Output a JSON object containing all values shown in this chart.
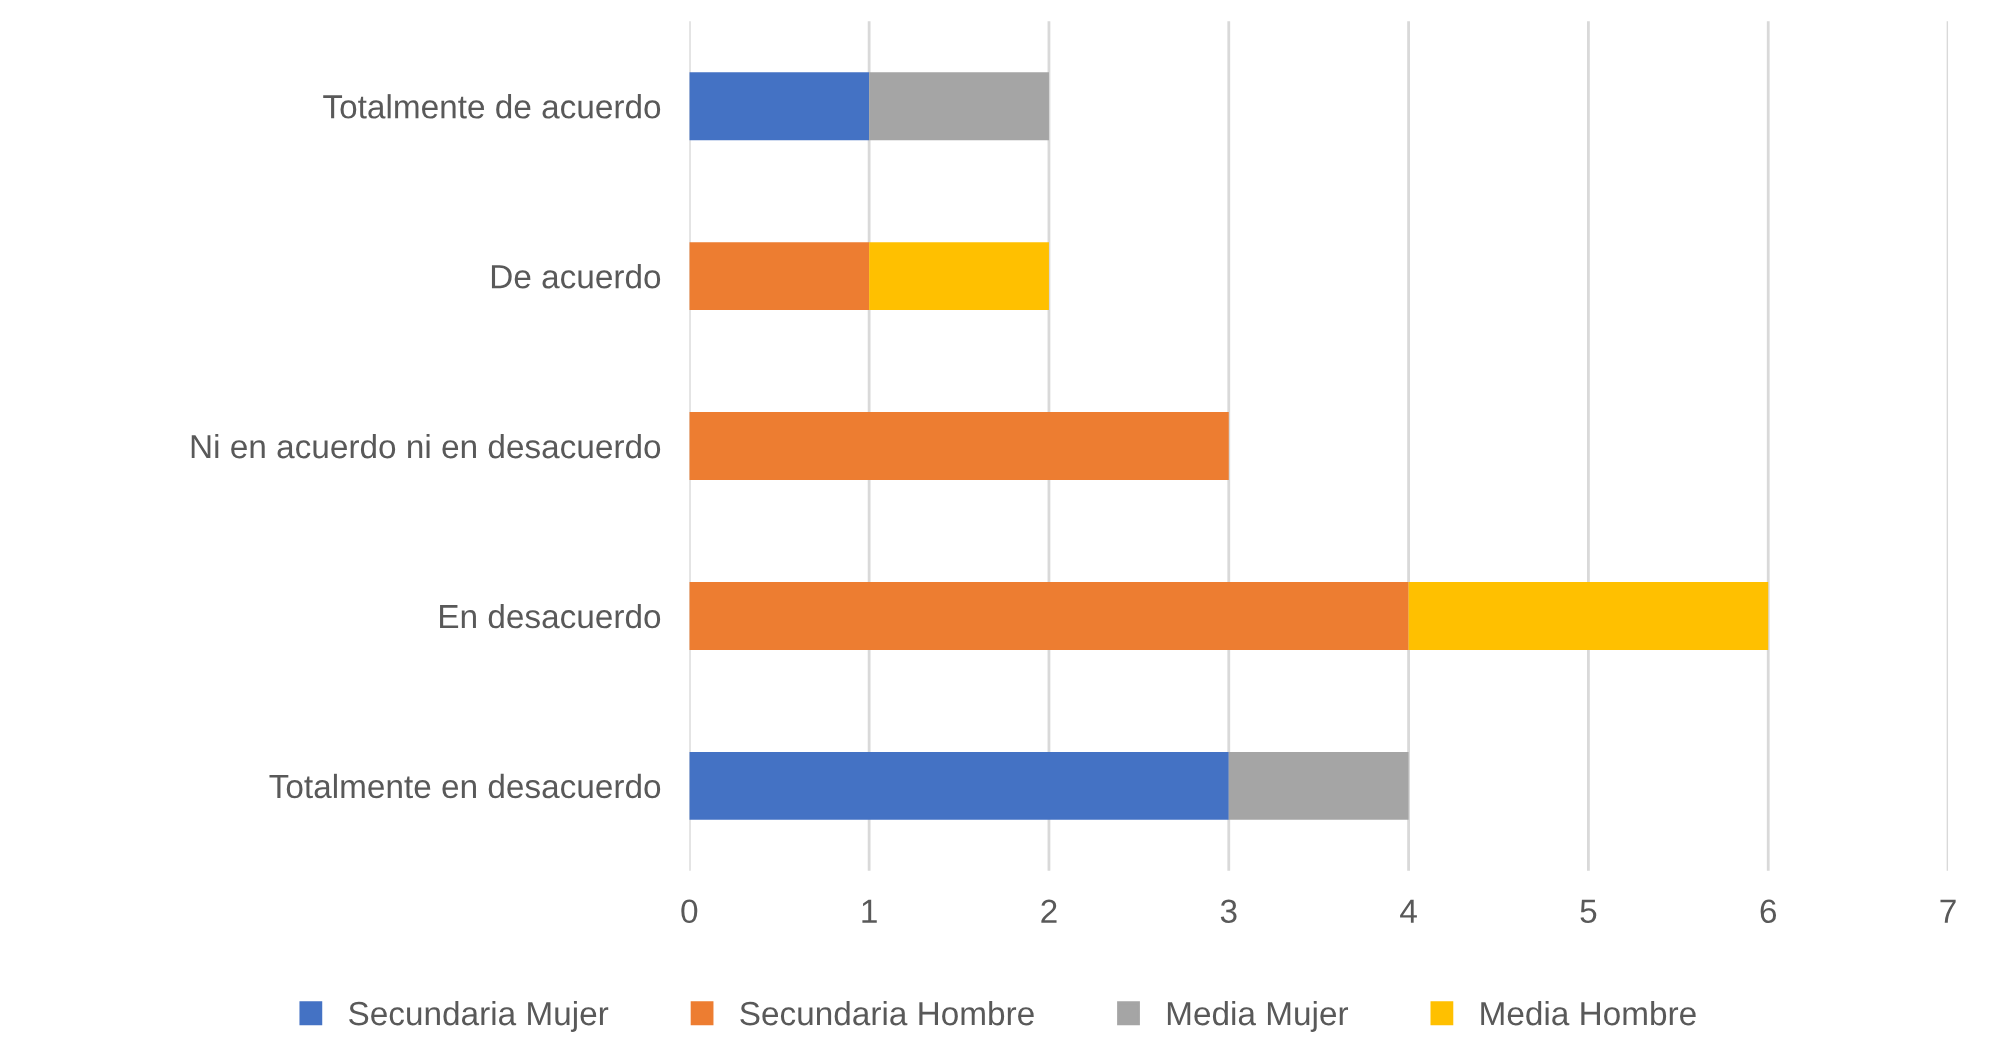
{
  "chart_data": {
    "type": "bar",
    "orientation": "horizontal",
    "stacked": true,
    "categories": [
      "Totalmente de acuerdo",
      "De acuerdo",
      "Ni en acuerdo ni en desacuerdo",
      "En desacuerdo",
      "Totalmente en desacuerdo"
    ],
    "series": [
      {
        "name": "Secundaria Mujer",
        "color": "#4472c4",
        "values": [
          1,
          null,
          null,
          null,
          3
        ]
      },
      {
        "name": "Secundaria Hombre",
        "color": "#ed7d31",
        "values": [
          null,
          1,
          3,
          4,
          null
        ]
      },
      {
        "name": "Media Mujer",
        "color": "#a5a5a5",
        "values": [
          1,
          null,
          null,
          null,
          1
        ]
      },
      {
        "name": "Media Hombre",
        "color": "#ffc000",
        "values": [
          null,
          1,
          null,
          2,
          null
        ]
      }
    ],
    "xlim": [
      0,
      7
    ],
    "xticks": [
      0,
      1,
      2,
      3,
      4,
      5,
      6,
      7
    ],
    "grid": "x",
    "legend": "bottom"
  }
}
